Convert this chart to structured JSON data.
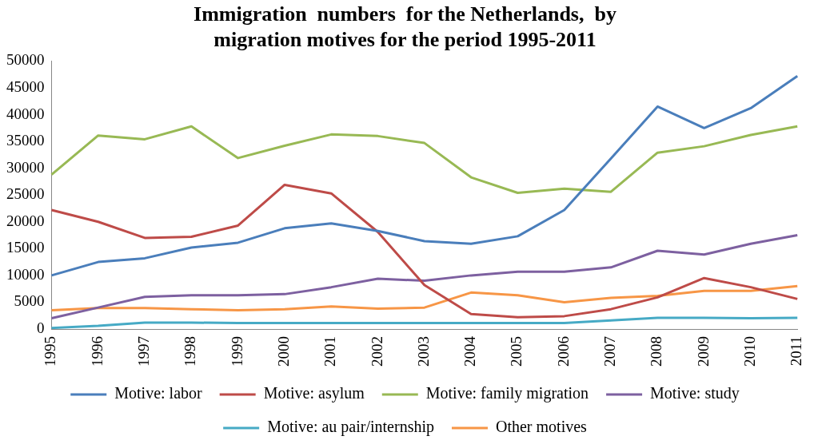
{
  "chart_data": {
    "type": "line",
    "title": "Immigration  numbers  for the Netherlands,  by migration motives for the period 1995-2011",
    "categories": [
      "1995",
      "1996",
      "1997",
      "1998",
      "1999",
      "2000",
      "2001",
      "2002",
      "2003",
      "2004",
      "2005",
      "2006",
      "2007",
      "2008",
      "2009",
      "2010",
      "2011"
    ],
    "series": [
      {
        "name": "Motive: labor",
        "color": "#4a7ebb",
        "values": [
          10000,
          12500,
          13200,
          15200,
          16100,
          18800,
          19700,
          18300,
          16400,
          15900,
          17300,
          22200,
          31800,
          41500,
          37500,
          41200,
          47200
        ]
      },
      {
        "name": "Motive: asylum",
        "color": "#be4b48",
        "values": [
          22200,
          20000,
          17000,
          17200,
          19300,
          26900,
          25300,
          18100,
          8200,
          2800,
          2200,
          2400,
          3700,
          5900,
          9500,
          7800,
          5600
        ]
      },
      {
        "name": "Motive: family migration",
        "color": "#98b954",
        "values": [
          28800,
          36100,
          35400,
          37800,
          31900,
          34200,
          36300,
          36000,
          34700,
          28300,
          25400,
          26200,
          25600,
          32900,
          34100,
          36200,
          37800
        ]
      },
      {
        "name": "Motive: study",
        "color": "#7d60a0",
        "values": [
          2000,
          4000,
          6000,
          6300,
          6300,
          6500,
          7800,
          9400,
          9000,
          10000,
          10700,
          10700,
          11500,
          14600,
          13900,
          15900,
          17500
        ]
      },
      {
        "name": "Motive: au pair/internship",
        "color": "#46aac5",
        "values": [
          200,
          600,
          1200,
          1200,
          1100,
          1100,
          1100,
          1100,
          1100,
          1100,
          1100,
          1100,
          1600,
          2100,
          2100,
          2000,
          2100
        ]
      },
      {
        "name": "Other motives",
        "color": "#f79646",
        "values": [
          3500,
          3900,
          3900,
          3700,
          3500,
          3700,
          4200,
          3800,
          4000,
          6800,
          6300,
          5000,
          5800,
          6200,
          7100,
          7100,
          8000
        ]
      }
    ],
    "ylim": [
      0,
      50000
    ],
    "yticks": [
      0,
      5000,
      10000,
      15000,
      20000,
      25000,
      30000,
      35000,
      40000,
      45000,
      50000
    ],
    "grid": false,
    "legend": "bottom",
    "marker": "none",
    "line_style": "solid"
  }
}
